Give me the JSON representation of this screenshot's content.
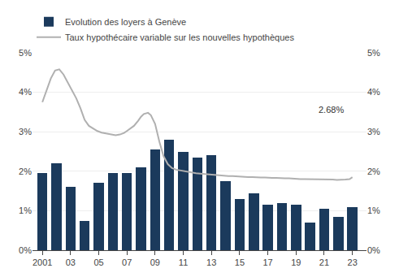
{
  "chart_data": {
    "type": "bar",
    "x": [
      2001,
      2002,
      2003,
      2004,
      2005,
      2006,
      2007,
      2008,
      2009,
      2010,
      2011,
      2012,
      2013,
      2014,
      2015,
      2016,
      2017,
      2018,
      2019,
      2020,
      2021,
      2022,
      2023
    ],
    "series": [
      {
        "name": "Evolution des loyers à Genève",
        "type": "bar",
        "color": "#1b3a5c",
        "x": [
          2001,
          2002,
          2003,
          2004,
          2005,
          2006,
          2007,
          2008,
          2009,
          2010,
          2011,
          2012,
          2013,
          2014,
          2015,
          2016,
          2017,
          2018,
          2019,
          2020,
          2021,
          2022,
          2023
        ],
        "values": [
          1.95,
          2.2,
          1.6,
          0.75,
          1.7,
          1.95,
          1.95,
          2.1,
          2.55,
          2.8,
          2.5,
          2.35,
          2.4,
          1.75,
          1.3,
          1.45,
          1.15,
          1.2,
          1.15,
          0.7,
          1.05,
          0.85,
          1.1
        ]
      },
      {
        "name": "Taux hypothécaire variable sur les nouvelles hypothèques",
        "type": "line",
        "color": "#b0b0b0",
        "axis": "y2",
        "x": [
          2001,
          2001.3,
          2001.6,
          2001.9,
          2002.2,
          2002.5,
          2002.8,
          2003.1,
          2003.4,
          2003.7,
          2004.0,
          2004.3,
          2004.6,
          2004.9,
          2005.2,
          2005.5,
          2005.8,
          2006.0,
          2006.2,
          2006.5,
          2006.8,
          2007.0,
          2007.2,
          2007.5,
          2007.8,
          2008.0,
          2008.2,
          2008.5,
          2008.7,
          2009.0,
          2009.3,
          2009.6,
          2009.9,
          2010.2,
          2010.5,
          2010.8,
          2011.0,
          2011.3,
          2011.6,
          2011.9,
          2012.2,
          2012.5,
          2012.8,
          2013.0,
          2013.3,
          2013.6,
          2013.9,
          2014.2,
          2014.5,
          2014.8,
          2015.0,
          2015.3,
          2015.6,
          2015.9,
          2016.2,
          2016.5,
          2016.8,
          2017.0,
          2017.3,
          2017.6,
          2017.9,
          2018.2,
          2018.5,
          2018.8,
          2019.0,
          2019.3,
          2019.6,
          2019.9,
          2020.2,
          2020.5,
          2020.8,
          2021.0,
          2021.3,
          2021.6,
          2021.9,
          2022.2,
          2022.5,
          2022.8,
          2023.0
        ],
        "values": [
          3.75,
          4.05,
          4.35,
          4.55,
          4.58,
          4.45,
          4.25,
          4.05,
          3.85,
          3.6,
          3.3,
          3.15,
          3.08,
          3.02,
          2.98,
          2.96,
          2.94,
          2.92,
          2.91,
          2.93,
          2.97,
          3.02,
          3.08,
          3.15,
          3.28,
          3.38,
          3.45,
          3.48,
          3.42,
          3.2,
          2.75,
          2.38,
          2.18,
          2.08,
          2.04,
          2.02,
          2.0,
          1.98,
          1.96,
          1.95,
          1.94,
          1.93,
          1.92,
          1.91,
          1.9,
          1.89,
          1.89,
          1.88,
          1.88,
          1.87,
          1.86,
          1.86,
          1.85,
          1.85,
          1.84,
          1.84,
          1.84,
          1.83,
          1.83,
          1.83,
          1.82,
          1.82,
          1.82,
          1.81,
          1.81,
          1.8,
          1.8,
          1.8,
          1.79,
          1.79,
          1.79,
          1.79,
          1.79,
          1.79,
          1.78,
          1.78,
          1.79,
          1.8,
          1.85
        ]
      }
    ],
    "xlim": [
      2000.3,
      2024.0
    ],
    "xticks": [
      2001,
      {
        "value": 2003,
        "label": "03"
      },
      {
        "value": 2005,
        "label": "05"
      },
      {
        "value": 2007,
        "label": "07"
      },
      {
        "value": 2009,
        "label": "09"
      },
      {
        "value": 2011,
        "label": "11"
      },
      {
        "value": 2013,
        "label": "13"
      },
      {
        "value": 2015,
        "label": "15"
      },
      {
        "value": 2017,
        "label": "17"
      },
      {
        "value": 2019,
        "label": "19"
      },
      {
        "value": 2021,
        "label": "21"
      },
      {
        "value": 2023,
        "label": "23"
      }
    ],
    "ylim": [
      0,
      5
    ],
    "yticks": [
      {
        "value": 0,
        "label": "0%"
      },
      {
        "value": 1,
        "label": "1%"
      },
      {
        "value": 2,
        "label": "2%"
      },
      {
        "value": 3,
        "label": "3%"
      },
      {
        "value": 4,
        "label": "4%"
      },
      {
        "value": 5,
        "label": "5%"
      }
    ],
    "y2lim": [
      0,
      5
    ],
    "y2ticks": [
      {
        "value": 0,
        "label": "0%"
      },
      {
        "value": 1,
        "label": "1%"
      },
      {
        "value": 2,
        "label": "2%"
      },
      {
        "value": 3,
        "label": "3%"
      },
      {
        "value": 4,
        "label": "4%"
      },
      {
        "value": 5,
        "label": "5%"
      }
    ],
    "annotations": [
      {
        "text": "2.68%",
        "x": 2023,
        "y": 2.68,
        "color": "#333333"
      }
    ],
    "grid": true,
    "legend": "upper left"
  }
}
